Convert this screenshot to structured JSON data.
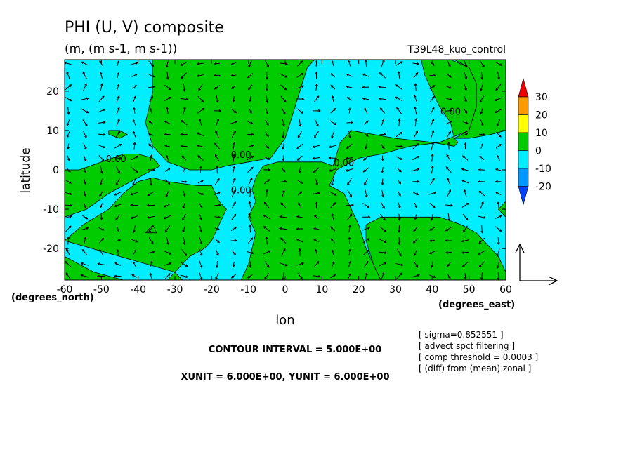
{
  "header": {
    "title": "PHI (U, V) composite",
    "units": "(m, (m s-1, m s-1))",
    "run_name": "T39L48_kuo_control"
  },
  "footer": {
    "contour_interval": "CONTOUR INTERVAL = 5.000E+00",
    "vector_units": "XUNIT = 6.000E+00, YUNIT = 6.000E+00",
    "notes": [
      "[ sigma=0.852551 ]",
      "[ advect spct filtering ]",
      "[ comp threshold = 0.0003 ]",
      "[ (diff) from (mean) zonal ]"
    ]
  },
  "chart_data": {
    "type": "heatmap",
    "title": "PHI (U, V) composite",
    "subtitle": "(m, (m s-1, m s-1))",
    "xlabel": "lon",
    "ylabel": "latitude",
    "x_unit_label": "(degrees_east)",
    "y_unit_label": "(degrees_north)",
    "xlim": [
      -60,
      60
    ],
    "ylim": [
      -28,
      28
    ],
    "x_ticks": [
      -60,
      -50,
      -40,
      -30,
      -20,
      -10,
      0,
      10,
      20,
      30,
      40,
      50,
      60
    ],
    "y_ticks": [
      -20,
      -10,
      0,
      10,
      20
    ],
    "x_tick_labels": [
      "-60",
      "-50",
      "-40",
      "-30",
      "-20",
      "-10",
      "0",
      "10",
      "20",
      "30",
      "40",
      "50",
      "60"
    ],
    "y_tick_labels": [
      "-20",
      "-10",
      "0",
      "10",
      "20"
    ],
    "contour_labels": [
      {
        "text": "0.00",
        "lon": -46,
        "lat": 2
      },
      {
        "text": "0.00",
        "lon": -12,
        "lat": 3
      },
      {
        "text": "0.00",
        "lon": -12,
        "lat": -6
      },
      {
        "text": "0.00",
        "lon": 16,
        "lat": 1
      },
      {
        "text": "0.00",
        "lon": 45,
        "lat": 14
      }
    ],
    "colorbar": {
      "labels": [
        "30",
        "20",
        "10",
        "0",
        "-10",
        "-20"
      ],
      "colors": [
        "#ee0000",
        "#ff9900",
        "#ffff00",
        "#00cc00",
        "#00eeff",
        "#0099ff",
        "#0044ff"
      ]
    },
    "positive_regions": [
      {
        "name": "north-west",
        "polygon": [
          [
            -36,
            28
          ],
          [
            -36,
            20
          ],
          [
            -38,
            12
          ],
          [
            -36,
            6
          ],
          [
            -32,
            2
          ],
          [
            -26,
            0
          ],
          [
            -20,
            0
          ],
          [
            -16,
            1
          ],
          [
            -10,
            2
          ],
          [
            -4,
            3
          ],
          [
            0,
            8
          ],
          [
            2,
            14
          ],
          [
            4,
            20
          ],
          [
            6,
            26
          ],
          [
            8,
            28
          ]
        ]
      },
      {
        "name": "north-east",
        "polygon": [
          [
            37,
            28
          ],
          [
            38,
            24
          ],
          [
            40,
            20
          ],
          [
            42,
            16
          ],
          [
            45,
            12
          ],
          [
            46,
            8
          ],
          [
            47,
            7
          ],
          [
            46,
            6
          ],
          [
            40,
            7
          ],
          [
            30,
            8
          ],
          [
            24,
            9
          ],
          [
            18,
            10
          ],
          [
            15,
            7
          ],
          [
            14,
            4
          ],
          [
            13,
            1
          ],
          [
            10,
            2
          ],
          [
            4,
            2
          ],
          [
            -2,
            2
          ],
          [
            -6,
            1
          ],
          [
            -8,
            -2
          ],
          [
            -9,
            -5
          ],
          [
            -8,
            -8
          ],
          [
            -10,
            -12
          ],
          [
            -8,
            -16
          ],
          [
            -9,
            -20
          ],
          [
            -10,
            -24
          ],
          [
            -12,
            -28
          ],
          [
            26,
            -28
          ],
          [
            24,
            -24
          ],
          [
            22,
            -20
          ],
          [
            20,
            -14
          ],
          [
            18,
            -10
          ],
          [
            16,
            -6
          ],
          [
            12,
            -4
          ],
          [
            14,
            0
          ],
          [
            20,
            3
          ],
          [
            26,
            4
          ],
          [
            34,
            6
          ],
          [
            42,
            7
          ],
          [
            50,
            10
          ],
          [
            52,
            16
          ],
          [
            52,
            22
          ],
          [
            50,
            26
          ],
          [
            45,
            28
          ]
        ]
      },
      {
        "name": "west",
        "polygon": [
          [
            -60,
            -18
          ],
          [
            -55,
            -14
          ],
          [
            -48,
            -10
          ],
          [
            -44,
            -6
          ],
          [
            -40,
            -3
          ],
          [
            -36,
            -2
          ],
          [
            -32,
            -3
          ],
          [
            -24,
            -4
          ],
          [
            -20,
            -4
          ],
          [
            -18,
            -8
          ],
          [
            -16,
            -10
          ],
          [
            -18,
            -14
          ],
          [
            -20,
            -18
          ],
          [
            -22,
            -20
          ],
          [
            -26,
            -22
          ],
          [
            -30,
            -26
          ],
          [
            -32,
            -28
          ],
          [
            -28,
            -28
          ],
          [
            -30,
            -26
          ]
        ]
      },
      {
        "name": "far-east",
        "polygon": [
          [
            60,
            28
          ],
          [
            46,
            28
          ],
          [
            50,
            26
          ],
          [
            52,
            22
          ],
          [
            52,
            16
          ],
          [
            50,
            10
          ],
          [
            46,
            8
          ],
          [
            50,
            8
          ],
          [
            56,
            9
          ],
          [
            60,
            10
          ]
        ]
      },
      {
        "name": "south-east",
        "polygon": [
          [
            60,
            -26
          ],
          [
            58,
            -22
          ],
          [
            56,
            -20
          ],
          [
            52,
            -16
          ],
          [
            48,
            -14
          ],
          [
            42,
            -12
          ],
          [
            36,
            -12
          ],
          [
            30,
            -12
          ],
          [
            26,
            -12
          ],
          [
            22,
            -14
          ],
          [
            22,
            -18
          ],
          [
            24,
            -24
          ],
          [
            26,
            -28
          ],
          [
            60,
            -28
          ]
        ]
      },
      {
        "name": "south-west",
        "polygon": [
          [
            -60,
            -22
          ],
          [
            -56,
            -24
          ],
          [
            -52,
            -26
          ],
          [
            -48,
            -27
          ],
          [
            -44,
            -28
          ],
          [
            -60,
            -28
          ]
        ]
      },
      {
        "name": "west-edge",
        "polygon": [
          [
            -60,
            0
          ],
          [
            -56,
            0
          ],
          [
            -50,
            2
          ],
          [
            -44,
            4
          ],
          [
            -40,
            4
          ],
          [
            -36,
            3
          ],
          [
            -34,
            1
          ],
          [
            -40,
            -2
          ],
          [
            -48,
            -6
          ],
          [
            -54,
            -10
          ],
          [
            -60,
            -12
          ]
        ]
      },
      {
        "name": "small-west",
        "polygon": [
          [
            -48,
            10
          ],
          [
            -45,
            10
          ],
          [
            -43,
            9
          ],
          [
            -45,
            8
          ],
          [
            -48,
            9
          ]
        ]
      },
      {
        "name": "small-mid-west",
        "polygon": [
          [
            -38,
            -16
          ],
          [
            -36,
            -14
          ],
          [
            -35,
            -16
          ]
        ]
      },
      {
        "name": "small-east",
        "polygon": [
          [
            58,
            -10
          ],
          [
            60,
            -8
          ],
          [
            60,
            -12
          ]
        ]
      }
    ]
  }
}
